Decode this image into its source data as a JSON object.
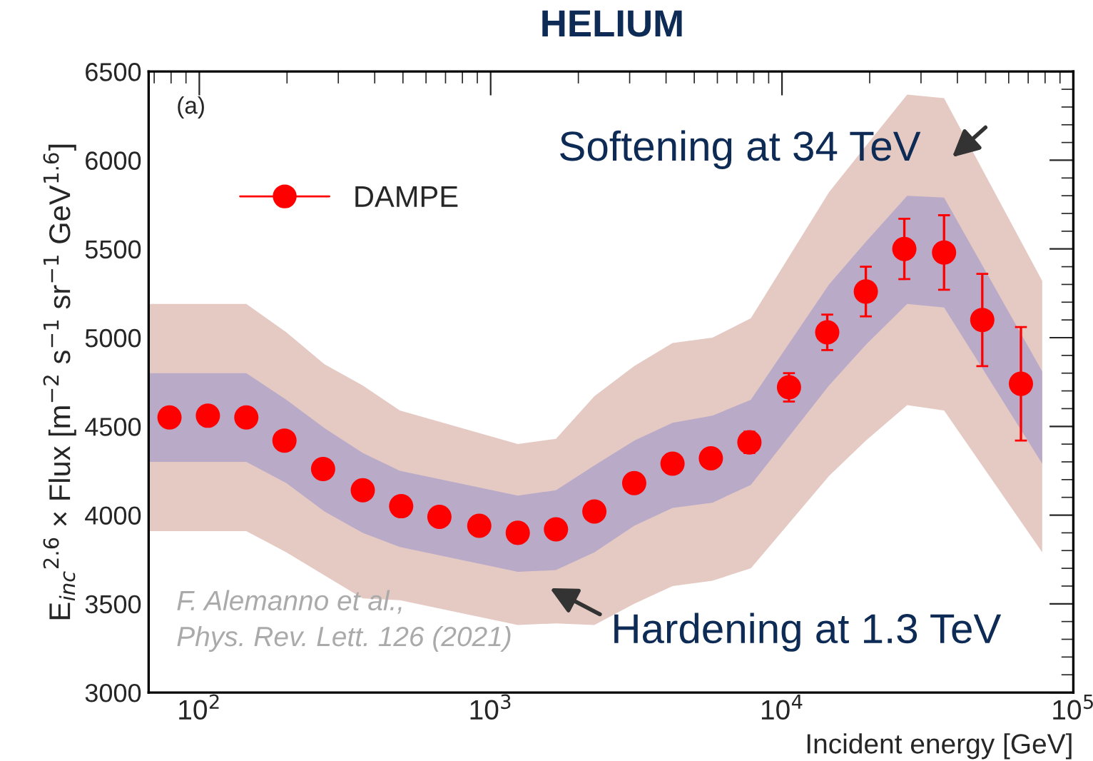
{
  "chart_data": {
    "type": "scatter",
    "title": "HELIUM",
    "xlabel": "Incident energy [GeV]",
    "ylabel": "E$_{inc}$$^{2.6}$ × Flux [m$^{−2}$ s$^{−1}$ sr$^{−1}$ GeV$^{1.6}$]",
    "log": "x",
    "xlim": [
      67,
      100000
    ],
    "xticks": [
      {
        "value": 100,
        "label": "10$^{2}$"
      },
      {
        "value": 1000,
        "label": "10$^{3}$"
      },
      {
        "value": 10000,
        "label": "10$^{4}$"
      },
      {
        "value": 100000,
        "label": "10$^{5}$"
      }
    ],
    "ylim": [
      3000,
      6500
    ],
    "yticks": [
      3000,
      3500,
      4000,
      4500,
      5000,
      5500,
      6000,
      6500
    ],
    "marker": "circle",
    "legend": "top left",
    "series": [
      {
        "type": "area",
        "color": "#e5cac4",
        "x": [
          67,
          145,
          199,
          269,
          364,
          488,
          1240,
          1675,
          2270,
          3110,
          4210,
          5770,
          7820,
          14500,
          19400,
          26900,
          36000,
          78200
        ],
        "values": [
          null,
          null,
          null,
          null,
          null,
          null,
          null,
          null,
          null,
          null,
          null,
          null,
          null,
          null,
          null,
          null,
          null,
          null
        ],
        "lower": [
          3910,
          3910,
          3790,
          3660,
          3530,
          3520,
          3380,
          3390,
          3380,
          3500,
          3600,
          3630,
          3700,
          4220,
          4420,
          4620,
          4590,
          3790
        ],
        "upper": [
          5190,
          5190,
          5030,
          4850,
          4730,
          4590,
          4400,
          4430,
          4670,
          4840,
          4970,
          5000,
          5110,
          5820,
          6080,
          6370,
          6350,
          5320
        ]
      },
      {
        "type": "area",
        "color": "#b9aac8",
        "x": [
          67,
          145,
          199,
          269,
          364,
          488,
          1240,
          1675,
          2270,
          3110,
          4210,
          5770,
          7820,
          14500,
          19400,
          26900,
          36000,
          78200
        ],
        "values": [
          null,
          null,
          null,
          null,
          null,
          null,
          null,
          null,
          null,
          null,
          null,
          null,
          null,
          null,
          null,
          null,
          null,
          null
        ],
        "lower": [
          4300,
          4300,
          4180,
          4020,
          3900,
          3820,
          3680,
          3690,
          3790,
          3940,
          4040,
          4070,
          4170,
          4730,
          4960,
          5190,
          5170,
          4290
        ],
        "upper": [
          4800,
          4800,
          4650,
          4490,
          4350,
          4250,
          4110,
          4140,
          4280,
          4420,
          4520,
          4560,
          4650,
          5300,
          5540,
          5800,
          5790,
          4810
        ]
      },
      {
        "name": "DAMPE",
        "color": "#ff0000",
        "x": [
          79,
          107,
          145,
          196,
          266,
          364,
          493,
          667,
          914,
          1239,
          1676,
          2270,
          3110,
          4210,
          5700,
          7730,
          10570,
          14300,
          19400,
          26300,
          36000,
          48700,
          66100
        ],
        "values": [
          4550,
          4560,
          4550,
          4420,
          4260,
          4140,
          4050,
          3990,
          3940,
          3900,
          3920,
          4020,
          4180,
          4290,
          4320,
          4410,
          4720,
          5030,
          5260,
          5500,
          5480,
          5100,
          4740
        ],
        "errors": [
          null,
          null,
          null,
          null,
          null,
          null,
          null,
          null,
          null,
          null,
          null,
          null,
          null,
          null,
          null,
          60,
          80,
          100,
          140,
          170,
          210,
          260,
          320
        ]
      }
    ],
    "annotations": [
      "(a)",
      "Softening at 34 TeV",
      "Hardening at 1.3 TeV",
      "F. Alemanno et al.,\nPhys. Rev. Lett. 126 (2021)"
    ]
  }
}
